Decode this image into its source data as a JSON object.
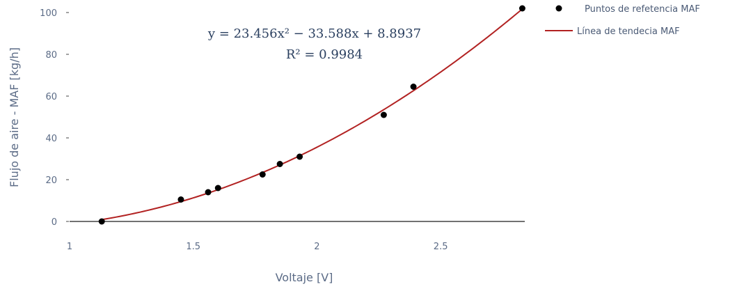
{
  "chart_data": {
    "type": "scatter",
    "xlabel": "Voltaje [V]",
    "ylabel": "Flujo de aire - MAF [kg/h]",
    "xlim": [
      1,
      2.84
    ],
    "ylim": [
      -1,
      102
    ],
    "x_ticks": [
      1,
      1.5,
      2,
      2.5
    ],
    "y_ticks": [
      0,
      20,
      40,
      60,
      80,
      100
    ],
    "grid": "y-zero-line-only",
    "legend_position": "top-right",
    "annotation": {
      "equation": "y = 23.456x² − 33.588x + 8.8937",
      "r_squared": "R² = 0.9984"
    },
    "series": [
      {
        "name": "Puntos de refetencia MAF",
        "mode": "markers",
        "color": "#000000",
        "points": [
          {
            "x": 1.13,
            "y": 0
          },
          {
            "x": 1.45,
            "y": 10.5
          },
          {
            "x": 1.56,
            "y": 14
          },
          {
            "x": 1.6,
            "y": 16
          },
          {
            "x": 1.78,
            "y": 22.5
          },
          {
            "x": 1.85,
            "y": 27.5
          },
          {
            "x": 1.93,
            "y": 31
          },
          {
            "x": 2.27,
            "y": 51
          },
          {
            "x": 2.39,
            "y": 64.5
          },
          {
            "x": 2.83,
            "y": 102
          }
        ]
      },
      {
        "name": "Línea de tendecia MAF",
        "mode": "line",
        "color": "#b22222",
        "coefficients": [
          23.456,
          -33.588,
          8.8937
        ],
        "x_range": [
          1.13,
          2.83
        ]
      }
    ]
  }
}
